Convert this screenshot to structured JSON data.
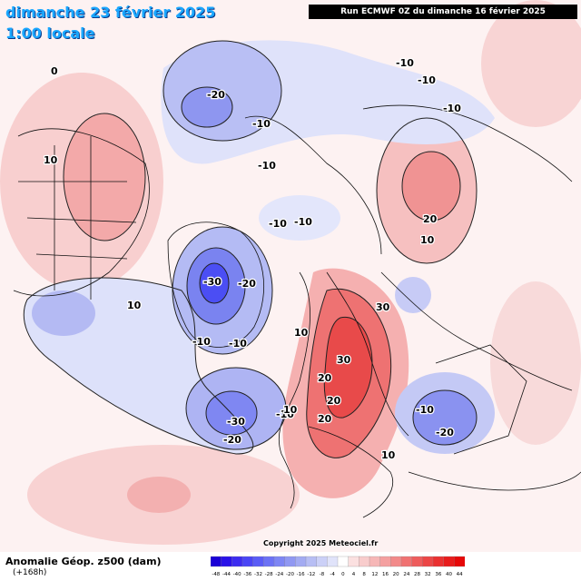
{
  "header": {
    "date": "dimanche 23 février 2025",
    "time": "1:00 locale",
    "run": "Run ECMWF 0Z du dimanche 16 février 2025"
  },
  "footer": {
    "variable": "Anomalie Géop. z500 (dam)",
    "lead": "(+168h)",
    "copyright": "Copyright 2025 Meteociel.fr"
  },
  "legend": {
    "values": [
      "-48",
      "-44",
      "-40",
      "-36",
      "-32",
      "-28",
      "-24",
      "-20",
      "-16",
      "-12",
      "-8",
      "-4",
      "0",
      "4",
      "8",
      "12",
      "16",
      "20",
      "24",
      "28",
      "32",
      "36",
      "40",
      "44"
    ],
    "colors": [
      "#1a00d6",
      "#2a12e8",
      "#3d2cf0",
      "#4a45f5",
      "#5a5cf6",
      "#6c72f5",
      "#7e86f4",
      "#9098f2",
      "#a3abf2",
      "#b7bef4",
      "#cbd0f7",
      "#e0e3fa",
      "#ffffff",
      "#fbe0e0",
      "#f8cccc",
      "#f6b7b7",
      "#f4a0a0",
      "#f28a8a",
      "#f07272",
      "#ee5c5c",
      "#ec4646",
      "#ea3030",
      "#e81c1c",
      "#e60808"
    ]
  },
  "contour_labels": [
    "0",
    "-20",
    "-10",
    "-10",
    "-10",
    "-10",
    "10",
    "-10",
    "-10",
    "10",
    "-10",
    "20",
    "10",
    "-30",
    "-20",
    "10",
    "-10",
    "-10",
    "30",
    "20",
    "-10",
    "-30",
    "-20",
    "10",
    "20",
    "-10",
    "-20",
    "30",
    "20",
    "10"
  ]
}
